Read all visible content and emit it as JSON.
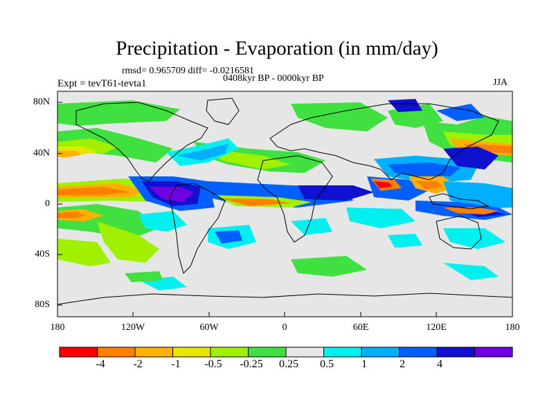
{
  "title": "Precipitation - Evaporation (in mm/day)",
  "stats": "rmsd= 0.965709 diff= -0.0216581",
  "period": "0408kyr BP - 0000kyr BP",
  "experiment": "Expt = tevT61-tevta1",
  "season": "JJA",
  "lat_labels": [
    "80N",
    "40N",
    "0",
    "40S",
    "80S"
  ],
  "lon_labels": [
    "180",
    "120W",
    "60W",
    "0",
    "60E",
    "120E",
    "180"
  ],
  "colorbar": {
    "colors": [
      "#ff0000",
      "#ff8000",
      "#ffb000",
      "#e6e600",
      "#a0f000",
      "#40e040",
      "#e6e6e6",
      "#00f0f0",
      "#00b0ff",
      "#0060ff",
      "#1010d0",
      "#7000e0"
    ],
    "labels": [
      "-4",
      "-2",
      "-1",
      "-0.5",
      "-0.25",
      "0.25",
      "0.5",
      "1",
      "2",
      "4"
    ]
  },
  "legend_colors": {
    "background": "#e6e6e6",
    "coast": "#000000"
  }
}
